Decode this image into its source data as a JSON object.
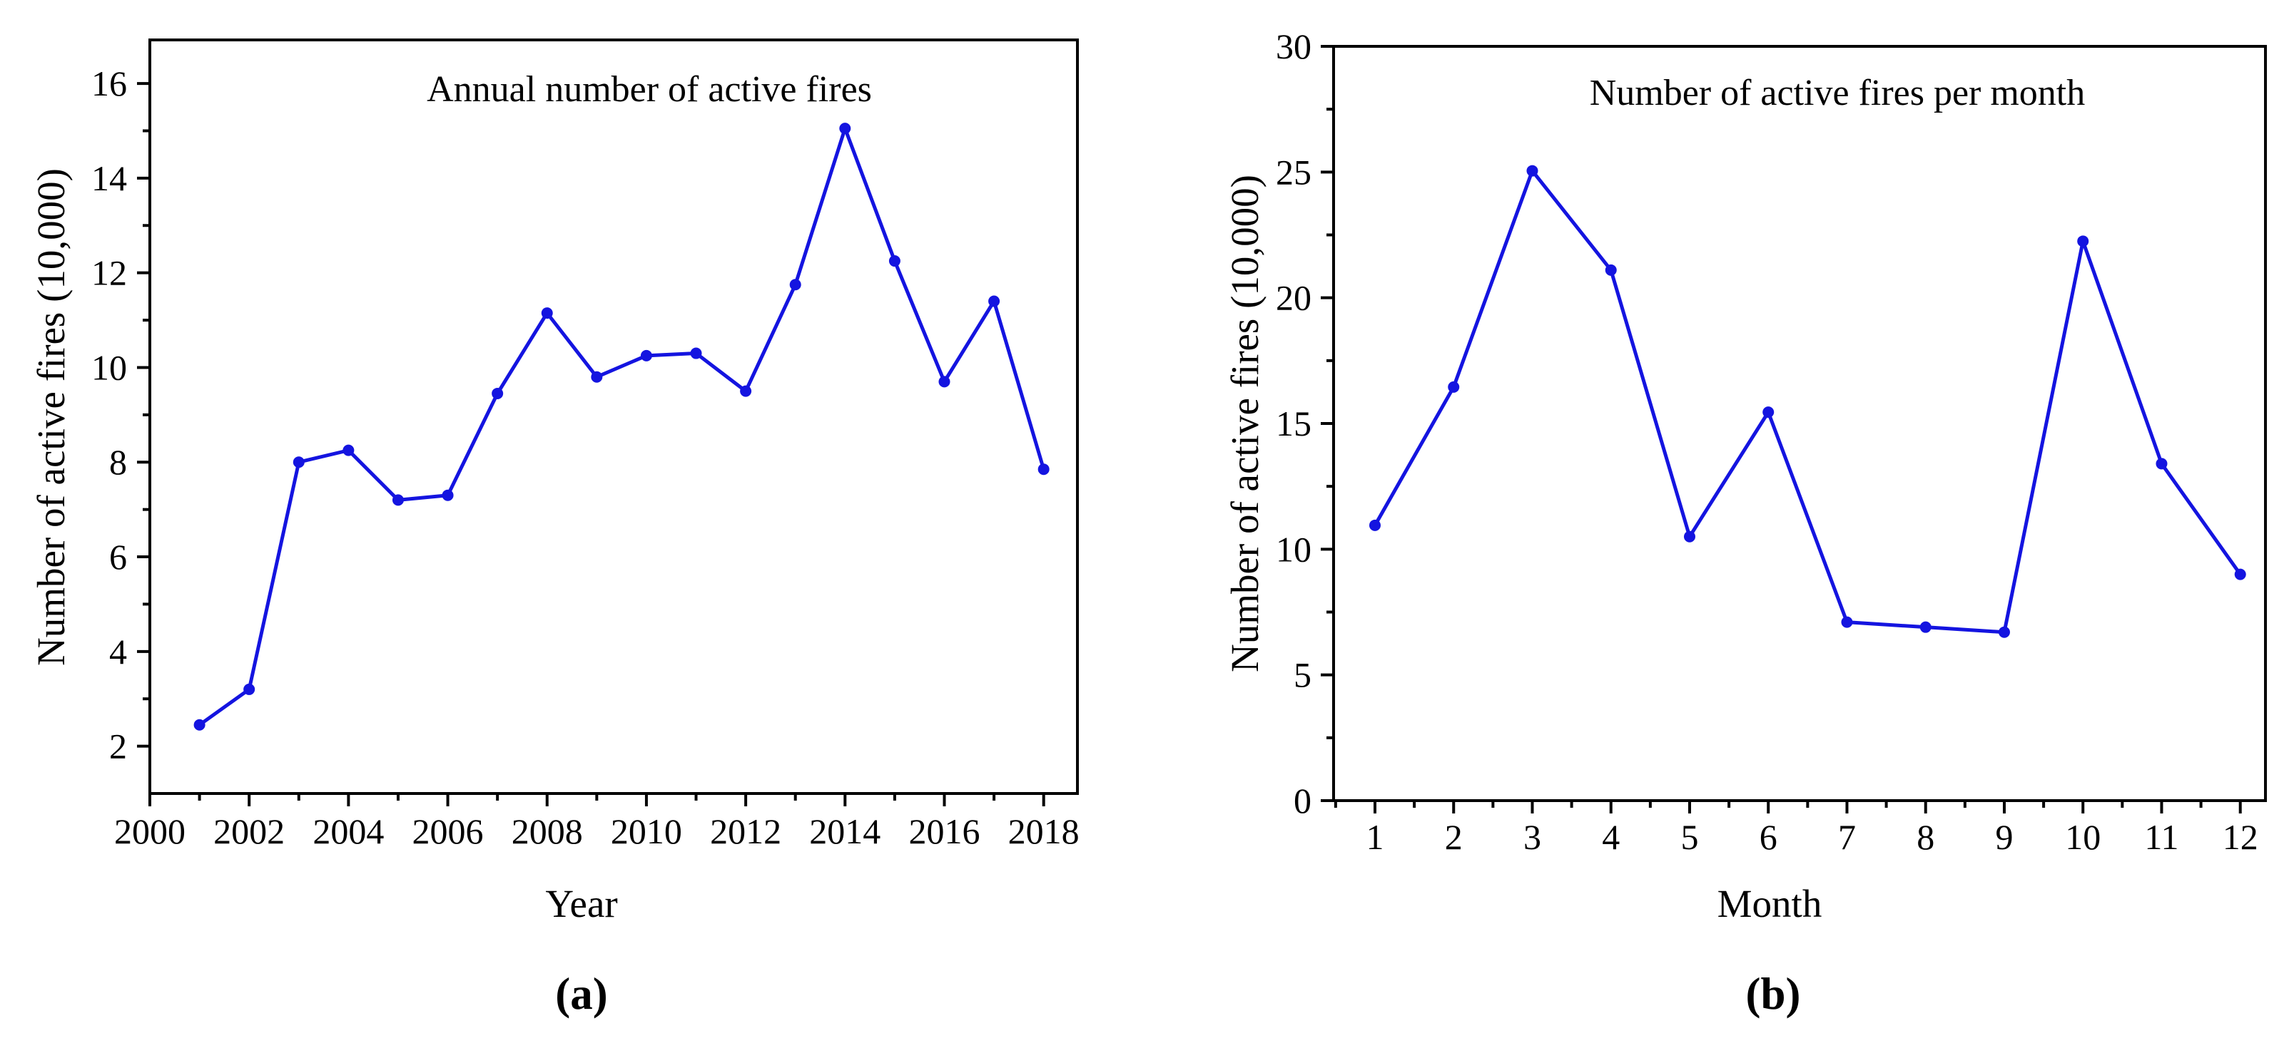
{
  "page": {
    "background": "#ffffff",
    "text_color": "#000000",
    "axis_color": "#000000"
  },
  "chart_data": [
    {
      "id": "a",
      "type": "line",
      "title": "Annual number of active fires",
      "xlabel": "Year",
      "ylabel": "Number of active fires (10,000)",
      "caption": "(a)",
      "legend": "none",
      "grid": false,
      "line_color": "#1414e0",
      "marker": "filled-circle",
      "x": [
        2001,
        2002,
        2003,
        2004,
        2005,
        2006,
        2007,
        2008,
        2009,
        2010,
        2011,
        2012,
        2013,
        2014,
        2015,
        2016,
        2017,
        2018
      ],
      "y": [
        2.45,
        3.2,
        8.0,
        8.25,
        7.2,
        7.3,
        9.45,
        11.15,
        9.8,
        10.25,
        10.3,
        9.5,
        11.75,
        15.05,
        12.25,
        9.7,
        11.4,
        7.85
      ],
      "xlim": [
        2000,
        2018.68
      ],
      "ylim": [
        1.0,
        16.92
      ],
      "xticks": [
        2000,
        2002,
        2004,
        2006,
        2008,
        2010,
        2012,
        2014,
        2016,
        2018
      ],
      "xticks_minor": [
        2001,
        2003,
        2005,
        2007,
        2009,
        2011,
        2013,
        2015,
        2017
      ],
      "yticks": [
        2,
        4,
        6,
        8,
        10,
        12,
        14,
        16
      ],
      "yticks_minor": [
        3,
        5,
        7,
        9,
        11,
        13,
        15
      ]
    },
    {
      "id": "b",
      "type": "line",
      "title": "Number of active fires per month",
      "xlabel": "Month",
      "ylabel": "Number of active fires (10,000)",
      "caption": "(b)",
      "legend": "none",
      "grid": false,
      "line_color": "#1414e0",
      "marker": "filled-circle",
      "x": [
        1,
        2,
        3,
        4,
        5,
        6,
        7,
        8,
        9,
        10,
        11,
        12
      ],
      "y": [
        10.95,
        16.45,
        25.05,
        21.1,
        10.5,
        15.45,
        7.1,
        6.9,
        6.7,
        22.25,
        13.4,
        9.0
      ],
      "xlim": [
        0.474,
        12.32
      ],
      "ylim": [
        0,
        30
      ],
      "xticks": [
        1,
        2,
        3,
        4,
        5,
        6,
        7,
        8,
        9,
        10,
        11,
        12
      ],
      "xticks_minor": [
        0.5,
        1.5,
        2.5,
        3.5,
        4.5,
        5.5,
        6.5,
        7.5,
        8.5,
        9.5,
        10.5,
        11.5
      ],
      "yticks": [
        0,
        5,
        10,
        15,
        20,
        25,
        30
      ],
      "yticks_minor": [
        2.5,
        7.5,
        12.5,
        17.5,
        22.5,
        27.5
      ]
    }
  ]
}
